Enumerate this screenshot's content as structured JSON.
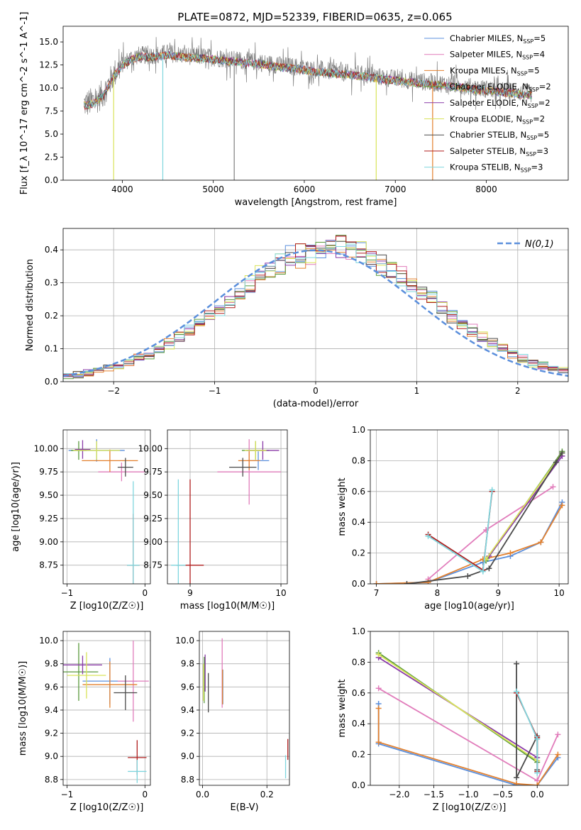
{
  "figure": {
    "title": "PLATE=0872, MJD=52339, FIBERID=0635, z=0.065"
  },
  "colors": {
    "Chabrier MILES": "#5b8fdc",
    "Salpeter MILES": "#e17cbb",
    "Kroupa MILES": "#e3812f",
    "Chabrier ELODIE": "#5a9a3c",
    "Salpeter ELODIE": "#8a3aa8",
    "Kroupa ELODIE": "#d9e35a",
    "Chabrier STELIB": "#4a4a4a",
    "Salpeter STELIB": "#b01e1e",
    "Kroupa STELIB": "#7fd6de",
    "data": "#7f7f7f"
  },
  "chart_data": [
    {
      "id": "spectrum",
      "type": "line",
      "xlabel": "wavelength [Angstrom, rest frame]",
      "ylabel": "Flux [f_λ 10^-17 erg cm^-2 s^-1 A^-1]",
      "xlim": [
        3350,
        8900
      ],
      "ylim": [
        0,
        16.7
      ],
      "xticks": [
        4000,
        5000,
        6000,
        7000,
        8000
      ],
      "yticks": [
        0.0,
        2.5,
        5.0,
        7.5,
        10.0,
        12.5,
        15.0
      ],
      "grid": false,
      "legend_position": "top-right",
      "legend": [
        {
          "name": "Chabrier MILES",
          "nssp": "5"
        },
        {
          "name": "Salpeter MILES",
          "nssp": "4"
        },
        {
          "name": "Kroupa MILES",
          "nssp": "5"
        },
        {
          "name": "Chabrier ELODIE",
          "nssp": "2"
        },
        {
          "name": "Salpeter ELODIE",
          "nssp": "2"
        },
        {
          "name": "Kroupa ELODIE",
          "nssp": "2"
        },
        {
          "name": "Chabrier STELIB",
          "nssp": "5"
        },
        {
          "name": "Salpeter STELIB",
          "nssp": "3"
        },
        {
          "name": "Kroupa STELIB",
          "nssp": "3"
        }
      ],
      "continuum": {
        "x": [
          3600,
          3700,
          3800,
          3900,
          4000,
          4100,
          4200,
          4300,
          4500,
          4700,
          4900,
          5100,
          5300,
          5500,
          5700,
          5900,
          6100,
          6300,
          6500,
          6700,
          6900,
          7100,
          7300,
          7500,
          7700,
          7900,
          8100,
          8300,
          8500
        ],
        "y": [
          8.3,
          8.6,
          9.5,
          11.4,
          12.6,
          13.3,
          13.6,
          13.5,
          13.8,
          13.5,
          13.4,
          13.2,
          13.0,
          12.8,
          12.5,
          12.3,
          12.0,
          11.8,
          11.6,
          11.4,
          11.1,
          10.9,
          10.7,
          10.5,
          10.3,
          10.0,
          9.8,
          9.6,
          9.4
        ]
      },
      "absorption_features": [
        {
          "x": 3905,
          "y": 0.0
        },
        {
          "x": 4445,
          "y": 0.0
        },
        {
          "x": 5230,
          "y": 0.0
        },
        {
          "x": 6790,
          "y": 0.0
        },
        {
          "x": 7410,
          "y": 0.0
        }
      ]
    },
    {
      "id": "residuals",
      "type": "line",
      "xlabel": "(data-model)/error",
      "ylabel": "Normed distribution",
      "xlim": [
        -2.5,
        2.5
      ],
      "ylim": [
        0,
        0.465
      ],
      "xticks": [
        -2,
        -1,
        0,
        1,
        2
      ],
      "yticks": [
        0.0,
        0.1,
        0.2,
        0.3,
        0.4
      ],
      "grid": true,
      "legend_position": "top-right",
      "legend": [
        {
          "name": "N(0,1)"
        }
      ],
      "bins": 50,
      "mu": 0,
      "sigma": 1
    },
    {
      "id": "age-vs-Z",
      "type": "scatter",
      "xlabel": "Z [log10(Z/Z☉)]",
      "ylabel": "age [log10(age/yr)]",
      "xlim": [
        -1.05,
        0.07
      ],
      "ylim": [
        8.55,
        10.2
      ],
      "xticks": [
        -1,
        0
      ],
      "yticks": [
        8.75,
        9.0,
        9.25,
        9.5,
        9.75,
        10.0
      ],
      "grid": true,
      "points": [
        {
          "series": "Chabrier MILES",
          "x": -0.62,
          "y": 9.98,
          "dx": 0.36,
          "dy": 0.12
        },
        {
          "series": "Salpeter MILES",
          "x": -0.3,
          "y": 9.75,
          "dx": 0.3,
          "dy": 0.1
        },
        {
          "series": "Kroupa MILES",
          "x": -0.45,
          "y": 9.87,
          "dx": 0.36,
          "dy": 0.12
        },
        {
          "series": "Chabrier ELODIE",
          "x": -0.85,
          "y": 9.98,
          "dx": 0.1,
          "dy": 0.1
        },
        {
          "series": "Salpeter ELODIE",
          "x": -0.8,
          "y": 9.99,
          "dx": 0.1,
          "dy": 0.1
        },
        {
          "series": "Kroupa ELODIE",
          "x": -0.62,
          "y": 9.98,
          "dx": 0.3,
          "dy": 0.1
        },
        {
          "series": "Chabrier STELIB",
          "x": -0.25,
          "y": 9.8,
          "dx": 0.1,
          "dy": 0.1
        },
        {
          "series": "Salpeter STELIB",
          "x": -0.15,
          "y": 8.75,
          "dx": 0.08,
          "dy": 0.55
        },
        {
          "series": "Kroupa STELIB",
          "x": -0.15,
          "y": 8.75,
          "dx": 0.08,
          "dy": 0.9
        }
      ]
    },
    {
      "id": "age-vs-mass",
      "type": "scatter",
      "xlabel": "mass [log10(M/M☉)]",
      "ylabel": "",
      "xlim": [
        8.75,
        10.07
      ],
      "ylim": [
        8.55,
        10.2
      ],
      "xticks": [
        9,
        10
      ],
      "yticks": [
        8.75,
        9.0,
        9.25,
        9.5,
        9.75,
        10.0
      ],
      "grid": true,
      "points": [
        {
          "series": "Chabrier MILES",
          "x": 9.75,
          "y": 9.87,
          "dx": 0.12,
          "dy": 0.1
        },
        {
          "series": "Salpeter MILES",
          "x": 9.65,
          "y": 9.75,
          "dx": 0.35,
          "dy": 0.35
        },
        {
          "series": "Kroupa MILES",
          "x": 9.65,
          "y": 9.87,
          "dx": 0.12,
          "dy": 0.1
        },
        {
          "series": "Chabrier ELODIE",
          "x": 9.72,
          "y": 9.98,
          "dx": 0.15,
          "dy": 0.1
        },
        {
          "series": "Salpeter ELODIE",
          "x": 9.8,
          "y": 9.98,
          "dx": 0.18,
          "dy": 0.1
        },
        {
          "series": "Kroupa ELODIE",
          "x": 9.72,
          "y": 9.98,
          "dx": 0.12,
          "dy": 0.1
        },
        {
          "series": "Chabrier STELIB",
          "x": 9.58,
          "y": 9.8,
          "dx": 0.15,
          "dy": 0.1
        },
        {
          "series": "Salpeter STELIB",
          "x": 9.0,
          "y": 8.75,
          "dx": 0.15,
          "dy": 0.92
        },
        {
          "series": "Kroupa STELIB",
          "x": 8.87,
          "y": 8.75,
          "dx": 0.08,
          "dy": 0.92
        }
      ]
    },
    {
      "id": "mass-weight-vs-age",
      "type": "line",
      "xlabel": "age [log10(age/yr)]",
      "ylabel": "mass weight",
      "xlim": [
        6.9,
        10.15
      ],
      "ylim": [
        0,
        1.0
      ],
      "xticks": [
        7,
        8,
        9,
        10
      ],
      "yticks": [
        0.0,
        0.2,
        0.4,
        0.6,
        0.8,
        1.0
      ],
      "grid": true,
      "series": [
        {
          "name": "Chabrier MILES",
          "x": [
            7.0,
            7.85,
            8.75,
            9.2,
            9.7,
            10.05
          ],
          "y": [
            0.0,
            0.01,
            0.14,
            0.18,
            0.27,
            0.53
          ]
        },
        {
          "name": "Salpeter MILES",
          "x": [
            7.85,
            8.8,
            9.9
          ],
          "y": [
            0.03,
            0.35,
            0.63
          ]
        },
        {
          "name": "Kroupa MILES",
          "x": [
            7.0,
            7.85,
            8.75,
            9.2,
            9.7,
            10.05
          ],
          "y": [
            0.0,
            0.01,
            0.16,
            0.2,
            0.27,
            0.51
          ]
        },
        {
          "name": "Chabrier ELODIE",
          "x": [
            8.8,
            10.05
          ],
          "y": [
            0.15,
            0.86
          ]
        },
        {
          "name": "Salpeter ELODIE",
          "x": [
            8.85,
            10.05
          ],
          "y": [
            0.18,
            0.83
          ]
        },
        {
          "name": "Kroupa ELODIE",
          "x": [
            8.8,
            10.05
          ],
          "y": [
            0.16,
            0.85
          ]
        },
        {
          "name": "Chabrier STELIB",
          "x": [
            7.5,
            8.5,
            8.85,
            9.95,
            10.05
          ],
          "y": [
            0.0,
            0.05,
            0.1,
            0.79,
            0.85
          ]
        },
        {
          "name": "Salpeter STELIB",
          "x": [
            7.85,
            8.75,
            8.9
          ],
          "y": [
            0.32,
            0.09,
            0.6
          ]
        },
        {
          "name": "Kroupa STELIB",
          "x": [
            7.85,
            8.75,
            8.9
          ],
          "y": [
            0.31,
            0.08,
            0.61
          ]
        }
      ]
    },
    {
      "id": "mass-vs-Z",
      "type": "scatter",
      "xlabel": "Z [log10(Z/Z☉)]",
      "ylabel": "mass [log10(M/M☉)]",
      "xlim": [
        -1.05,
        0.07
      ],
      "ylim": [
        8.75,
        10.08
      ],
      "xticks": [
        -1,
        0
      ],
      "yticks": [
        8.8,
        9.0,
        9.2,
        9.4,
        9.6,
        9.8,
        10.0
      ],
      "grid": true,
      "points": [
        {
          "series": "Chabrier MILES",
          "x": -0.45,
          "y": 9.65,
          "dx": 0.35,
          "dy": 0.2
        },
        {
          "series": "Salpeter MILES",
          "x": -0.15,
          "y": 9.65,
          "dx": 0.2,
          "dy": 0.35
        },
        {
          "series": "Kroupa MILES",
          "x": -0.45,
          "y": 9.62,
          "dx": 0.35,
          "dy": 0.2
        },
        {
          "series": "Chabrier ELODIE",
          "x": -0.85,
          "y": 9.73,
          "dx": 0.25,
          "dy": 0.25
        },
        {
          "series": "Salpeter ELODIE",
          "x": -0.8,
          "y": 9.79,
          "dx": 0.25,
          "dy": 0.08
        },
        {
          "series": "Kroupa ELODIE",
          "x": -0.75,
          "y": 9.7,
          "dx": 0.25,
          "dy": 0.2
        },
        {
          "series": "Chabrier STELIB",
          "x": -0.25,
          "y": 9.55,
          "dx": 0.15,
          "dy": 0.15
        },
        {
          "series": "Salpeter STELIB",
          "x": -0.1,
          "y": 8.99,
          "dx": 0.12,
          "dy": 0.15
        },
        {
          "series": "Kroupa STELIB",
          "x": -0.1,
          "y": 8.87,
          "dx": 0.12,
          "dy": 0.1
        }
      ]
    },
    {
      "id": "mass-vs-EBV",
      "type": "scatter",
      "xlabel": "E(B-V)",
      "ylabel": "",
      "xlim": [
        -0.01,
        0.27
      ],
      "ylim": [
        8.75,
        10.08
      ],
      "xticks": [
        0.0,
        0.2
      ],
      "yticks": [
        8.8,
        9.0,
        9.2,
        9.4,
        9.6,
        9.8,
        10.0
      ],
      "grid": true,
      "points": [
        {
          "series": "Chabrier MILES",
          "x": 0.063,
          "y": 9.6,
          "dx": 0.0,
          "dy": 0.15
        },
        {
          "series": "Salpeter MILES",
          "x": 0.061,
          "y": 9.72,
          "dx": 0.0,
          "dy": 0.3
        },
        {
          "series": "Kroupa MILES",
          "x": 0.062,
          "y": 9.6,
          "dx": 0.0,
          "dy": 0.15
        },
        {
          "series": "Chabrier ELODIE",
          "x": 0.005,
          "y": 9.66,
          "dx": 0.0,
          "dy": 0.2
        },
        {
          "series": "Salpeter ELODIE",
          "x": 0.008,
          "y": 9.72,
          "dx": 0.0,
          "dy": 0.16
        },
        {
          "series": "Kroupa ELODIE",
          "x": 0.003,
          "y": 9.64,
          "dx": 0.0,
          "dy": 0.16
        },
        {
          "series": "Chabrier STELIB",
          "x": 0.018,
          "y": 9.55,
          "dx": 0.0,
          "dy": 0.17
        },
        {
          "series": "Salpeter STELIB",
          "x": 0.265,
          "y": 9.06,
          "dx": 0.0,
          "dy": 0.09
        },
        {
          "series": "Kroupa STELIB",
          "x": 0.258,
          "y": 8.91,
          "dx": 0.0,
          "dy": 0.1
        }
      ]
    },
    {
      "id": "mass-weight-vs-Z",
      "type": "line",
      "xlabel": "Z [log10(Z/Z☉)]",
      "ylabel": "mass weight",
      "xlim": [
        -2.42,
        0.45
      ],
      "ylim": [
        0,
        1.0
      ],
      "xticks": [
        -2.0,
        -1.5,
        -1.0,
        -0.5,
        0.0
      ],
      "yticks": [
        0.0,
        0.2,
        0.4,
        0.6,
        0.8,
        1.0
      ],
      "grid": true,
      "series": [
        {
          "name": "Chabrier MILES",
          "x": [
            -2.3,
            -2.3,
            -0.3,
            0.0,
            0.3
          ],
          "y": [
            0.53,
            0.27,
            0.0,
            0.0,
            0.18
          ]
        },
        {
          "name": "Salpeter MILES",
          "x": [
            -2.3,
            0.0,
            0.3
          ],
          "y": [
            0.63,
            0.03,
            0.33
          ]
        },
        {
          "name": "Kroupa MILES",
          "x": [
            -2.3,
            -2.3,
            -0.3,
            0.0,
            0.3
          ],
          "y": [
            0.5,
            0.28,
            0.01,
            0.0,
            0.2
          ]
        },
        {
          "name": "Chabrier ELODIE",
          "x": [
            -2.3,
            0.0
          ],
          "y": [
            0.86,
            0.15
          ]
        },
        {
          "name": "Salpeter ELODIE",
          "x": [
            -2.3,
            0.0
          ],
          "y": [
            0.83,
            0.18
          ]
        },
        {
          "name": "Kroupa ELODIE",
          "x": [
            -2.3,
            0.0
          ],
          "y": [
            0.85,
            0.16
          ]
        },
        {
          "name": "Chabrier STELIB",
          "x": [
            -0.3,
            -0.3,
            0.0,
            0.0
          ],
          "y": [
            0.79,
            0.05,
            0.32,
            0.1
          ]
        },
        {
          "name": "Salpeter STELIB",
          "x": [
            -0.3,
            0.0,
            0.0
          ],
          "y": [
            0.6,
            0.31,
            0.09
          ]
        },
        {
          "name": "Kroupa STELIB",
          "x": [
            -0.3,
            0.0,
            0.0
          ],
          "y": [
            0.61,
            0.3,
            0.08
          ]
        }
      ]
    }
  ]
}
